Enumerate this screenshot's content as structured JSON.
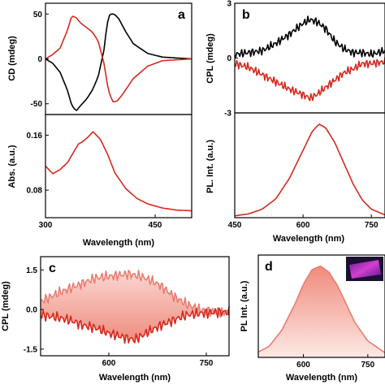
{
  "colors": {
    "black": "#000000",
    "red": "#d42a1e",
    "lightRed": "#e87e72",
    "fill": "#f6b6ab"
  },
  "chart_data": [
    {
      "panel": "a",
      "type": "line",
      "ylabel": "CD (mdeg)",
      "xlim": [
        300,
        500
      ],
      "ylim": [
        -62,
        62
      ],
      "yticks": [
        "50",
        "0",
        "-50"
      ],
      "series": [
        {
          "color": "black",
          "x": [
            300,
            310,
            320,
            330,
            336,
            342,
            348,
            356,
            364,
            372,
            380,
            384,
            388,
            394,
            400,
            410,
            420,
            440,
            460,
            500
          ],
          "y": [
            0,
            -5,
            -15,
            -35,
            -52,
            -58,
            -52,
            -45,
            -35,
            -20,
            10,
            38,
            50,
            50,
            45,
            30,
            17,
            6,
            2,
            0
          ]
        },
        {
          "color": "red",
          "x": [
            300,
            310,
            320,
            330,
            336,
            342,
            348,
            356,
            364,
            372,
            380,
            386,
            392,
            398,
            405,
            420,
            440,
            460,
            500
          ],
          "y": [
            0,
            5,
            12,
            32,
            48,
            46,
            40,
            35,
            30,
            20,
            -5,
            -35,
            -48,
            -47,
            -40,
            -22,
            -8,
            -2,
            0
          ]
        }
      ]
    },
    {
      "panel": "a-abs",
      "type": "line",
      "ylabel": "Abs. (a.u.)",
      "xlabel": "Wavelength (nm)",
      "xlim": [
        300,
        500
      ],
      "ylim": [
        0.04,
        0.19
      ],
      "xticks": [
        "300",
        "450"
      ],
      "yticks": [
        "0.16",
        "0.08"
      ],
      "series": [
        {
          "color": "red",
          "x": [
            300,
            310,
            320,
            330,
            340,
            345,
            350,
            358,
            365,
            375,
            385,
            395,
            410,
            425,
            440,
            460,
            480,
            500
          ],
          "y": [
            0.115,
            0.104,
            0.11,
            0.12,
            0.138,
            0.147,
            0.15,
            0.157,
            0.165,
            0.154,
            0.132,
            0.105,
            0.082,
            0.068,
            0.06,
            0.054,
            0.051,
            0.05
          ]
        }
      ]
    },
    {
      "panel": "b",
      "type": "line",
      "ylabel": "CPL (mdeg)",
      "xlim": [
        450,
        780
      ],
      "ylim": [
        -3,
        3
      ],
      "yticks": [
        "3",
        "0",
        "-3"
      ],
      "series": [
        {
          "color": "black",
          "x": [
            450,
            480,
            510,
            540,
            570,
            600,
            615,
            630,
            650,
            670,
            690,
            710,
            730,
            750,
            780
          ],
          "y": [
            0.2,
            0.3,
            0.4,
            0.8,
            1.3,
            1.9,
            2.1,
            2.0,
            1.6,
            0.9,
            0.5,
            0.3,
            0.3,
            0.2,
            0.4
          ]
        },
        {
          "color": "red",
          "x": [
            450,
            480,
            510,
            540,
            570,
            600,
            615,
            630,
            650,
            670,
            690,
            710,
            730,
            750,
            780
          ],
          "y": [
            -0.3,
            -0.5,
            -0.9,
            -1.3,
            -1.7,
            -2.0,
            -2.2,
            -2.0,
            -1.6,
            -1.2,
            -0.8,
            -0.6,
            -0.3,
            -0.3,
            -0.2
          ]
        }
      ]
    },
    {
      "panel": "b-pl",
      "type": "line",
      "ylabel": "PL. Int. (a.u.)",
      "xlabel": "Wavelength (nm)",
      "xlim": [
        450,
        780
      ],
      "ylim": [
        0,
        1.12
      ],
      "xticks": [
        "450",
        "600",
        "750"
      ],
      "series": [
        {
          "color": "red",
          "x": [
            450,
            480,
            510,
            540,
            570,
            600,
            620,
            635,
            650,
            670,
            690,
            710,
            730,
            750,
            780
          ],
          "y": [
            0.02,
            0.04,
            0.09,
            0.2,
            0.42,
            0.72,
            0.92,
            1.0,
            0.96,
            0.8,
            0.58,
            0.36,
            0.19,
            0.09,
            0.03
          ]
        }
      ]
    },
    {
      "panel": "c",
      "type": "area",
      "ylabel": "CPL (mdeg)",
      "xlabel": "Wavelength (nm)",
      "xlim": [
        495,
        785
      ],
      "ylim": [
        -1.75,
        2.0
      ],
      "xticks": [
        "600",
        "750"
      ],
      "yticks": [
        "1.5",
        "0.0",
        "-1.5"
      ],
      "series": [
        {
          "color": "lightRed",
          "x": [
            495,
            520,
            540,
            560,
            580,
            600,
            615,
            630,
            650,
            665,
            680,
            700,
            720,
            740,
            770,
            785
          ],
          "y": [
            0.3,
            0.6,
            0.8,
            1.0,
            1.2,
            1.25,
            1.3,
            1.35,
            1.25,
            1.1,
            0.9,
            0.5,
            0.2,
            0.0,
            -0.1,
            -0.1
          ]
        },
        {
          "color": "red",
          "x": [
            495,
            520,
            540,
            560,
            580,
            600,
            615,
            630,
            640,
            650,
            665,
            680,
            700,
            720,
            740,
            770,
            785
          ],
          "y": [
            -0.2,
            -0.3,
            -0.4,
            -0.6,
            -0.7,
            -0.9,
            -1.0,
            -1.1,
            -1.15,
            -1.0,
            -0.8,
            -0.6,
            -0.4,
            -0.2,
            -0.15,
            -0.1,
            -0.1
          ]
        }
      ]
    },
    {
      "panel": "d",
      "type": "area",
      "ylabel": "PL Int. (a.u.)",
      "xlabel": "Wavelength (nm)",
      "xlim": [
        495,
        790
      ],
      "ylim": [
        0,
        1.12
      ],
      "xticks": [
        "600",
        "750"
      ],
      "series": [
        {
          "color": "lightRed",
          "x": [
            495,
            520,
            550,
            580,
            600,
            620,
            640,
            660,
            680,
            700,
            720,
            750,
            790
          ],
          "y": [
            0.06,
            0.12,
            0.3,
            0.58,
            0.8,
            0.96,
            1.0,
            0.93,
            0.78,
            0.58,
            0.38,
            0.18,
            0.05
          ]
        }
      ]
    }
  ],
  "panels": {
    "a": "a",
    "b": "b",
    "c": "c",
    "d": "d"
  }
}
